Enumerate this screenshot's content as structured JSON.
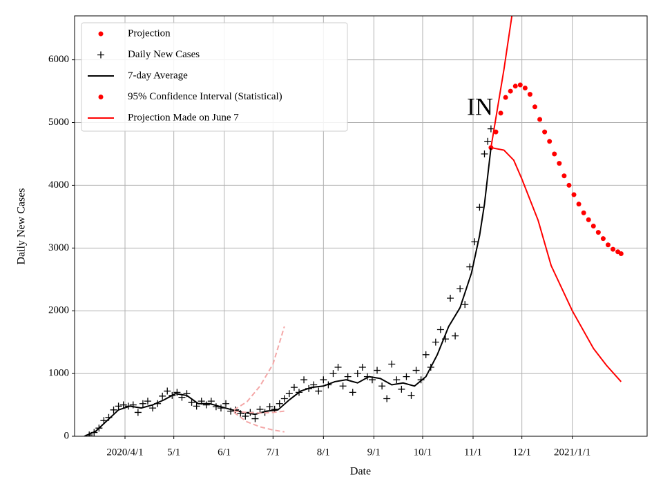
{
  "chart_data": {
    "type": "line",
    "annotation": "IN",
    "xlabel": "Date",
    "ylabel": "Daily New Cases",
    "xlim": [
      "2020-03-01",
      "2021-02-16"
    ],
    "xticks": [
      {
        "value": "2020-04-01",
        "label": "2020/4/1"
      },
      {
        "value": "2020-05-01",
        "label": "5/1"
      },
      {
        "value": "2020-06-01",
        "label": "6/1"
      },
      {
        "value": "2020-07-01",
        "label": "7/1"
      },
      {
        "value": "2020-08-01",
        "label": "8/1"
      },
      {
        "value": "2020-09-01",
        "label": "9/1"
      },
      {
        "value": "2020-10-01",
        "label": "10/1"
      },
      {
        "value": "2020-11-01",
        "label": "11/1"
      },
      {
        "value": "2020-12-01",
        "label": "12/1"
      },
      {
        "value": "2021-01-01",
        "label": "2021/1/1"
      }
    ],
    "ylim": [
      0,
      6700
    ],
    "yticks": [
      0,
      1000,
      2000,
      3000,
      4000,
      5000,
      6000
    ],
    "grid": true,
    "legend": "upper left",
    "series": [
      {
        "name": "Projection",
        "color": "red",
        "style": "dot",
        "legend_marker": "dot",
        "x": [
          "2020-11-12",
          "2020-11-15",
          "2020-11-18",
          "2020-11-21",
          "2020-11-24",
          "2020-11-27",
          "2020-11-30",
          "2020-12-03",
          "2020-12-06",
          "2020-12-09",
          "2020-12-12",
          "2020-12-15",
          "2020-12-18",
          "2020-12-21",
          "2020-12-24",
          "2020-12-27",
          "2020-12-30",
          "2021-01-02",
          "2021-01-05",
          "2021-01-08",
          "2021-01-11",
          "2021-01-14",
          "2021-01-17",
          "2021-01-20",
          "2021-01-23",
          "2021-01-26",
          "2021-01-29",
          "2021-01-31"
        ],
        "values": [
          4600,
          4850,
          5150,
          5400,
          5500,
          5580,
          5600,
          5550,
          5450,
          5250,
          5050,
          4850,
          4700,
          4500,
          4350,
          4150,
          4000,
          3850,
          3700,
          3560,
          3450,
          3350,
          3250,
          3150,
          3050,
          2980,
          2940,
          2910
        ]
      },
      {
        "name": "Daily New Cases",
        "color": "black",
        "style": "plus",
        "legend_marker": "plus",
        "x": [
          "2020-03-10",
          "2020-03-13",
          "2020-03-16",
          "2020-03-19",
          "2020-03-22",
          "2020-03-25",
          "2020-03-28",
          "2020-03-31",
          "2020-04-03",
          "2020-04-06",
          "2020-04-09",
          "2020-04-12",
          "2020-04-15",
          "2020-04-18",
          "2020-04-21",
          "2020-04-24",
          "2020-04-27",
          "2020-04-30",
          "2020-05-03",
          "2020-05-06",
          "2020-05-09",
          "2020-05-12",
          "2020-05-15",
          "2020-05-18",
          "2020-05-21",
          "2020-05-24",
          "2020-05-27",
          "2020-05-30",
          "2020-06-02",
          "2020-06-05",
          "2020-06-08",
          "2020-06-11",
          "2020-06-14",
          "2020-06-17",
          "2020-06-20",
          "2020-06-23",
          "2020-06-26",
          "2020-06-29",
          "2020-07-02",
          "2020-07-05",
          "2020-07-08",
          "2020-07-11",
          "2020-07-14",
          "2020-07-17",
          "2020-07-20",
          "2020-07-23",
          "2020-07-26",
          "2020-07-29",
          "2020-08-01",
          "2020-08-04",
          "2020-08-07",
          "2020-08-10",
          "2020-08-13",
          "2020-08-16",
          "2020-08-19",
          "2020-08-22",
          "2020-08-25",
          "2020-08-28",
          "2020-08-31",
          "2020-09-03",
          "2020-09-06",
          "2020-09-09",
          "2020-09-12",
          "2020-09-15",
          "2020-09-18",
          "2020-09-21",
          "2020-09-24",
          "2020-09-27",
          "2020-09-30",
          "2020-10-03",
          "2020-10-06",
          "2020-10-09",
          "2020-10-12",
          "2020-10-15",
          "2020-10-18",
          "2020-10-21",
          "2020-10-24",
          "2020-10-27",
          "2020-10-30",
          "2020-11-02",
          "2020-11-05",
          "2020-11-08",
          "2020-11-10",
          "2020-11-12"
        ],
        "values": [
          20,
          60,
          130,
          250,
          300,
          420,
          480,
          500,
          480,
          500,
          380,
          520,
          560,
          450,
          520,
          640,
          720,
          650,
          700,
          620,
          680,
          540,
          480,
          560,
          500,
          560,
          470,
          450,
          520,
          400,
          420,
          360,
          320,
          380,
          280,
          430,
          380,
          470,
          430,
          520,
          600,
          680,
          780,
          700,
          900,
          760,
          820,
          720,
          900,
          820,
          1000,
          1100,
          800,
          950,
          700,
          1000,
          1100,
          950,
          900,
          1050,
          800,
          600,
          1150,
          900,
          750,
          950,
          650,
          1050,
          900,
          1300,
          1100,
          1500,
          1700,
          1550,
          2200,
          1600,
          2350,
          2100,
          2700,
          3100,
          3650,
          4500,
          4700,
          4900
        ]
      },
      {
        "name": "7-day Average",
        "color": "black",
        "style": "line",
        "legend_marker": "line",
        "x": [
          "2020-03-07",
          "2020-03-14",
          "2020-03-21",
          "2020-03-28",
          "2020-04-04",
          "2020-04-11",
          "2020-04-18",
          "2020-04-25",
          "2020-05-02",
          "2020-05-09",
          "2020-05-16",
          "2020-05-23",
          "2020-05-30",
          "2020-06-06",
          "2020-06-13",
          "2020-06-20",
          "2020-06-27",
          "2020-07-04",
          "2020-07-11",
          "2020-07-18",
          "2020-07-25",
          "2020-08-01",
          "2020-08-08",
          "2020-08-15",
          "2020-08-22",
          "2020-08-29",
          "2020-09-05",
          "2020-09-12",
          "2020-09-19",
          "2020-09-26",
          "2020-10-03",
          "2020-10-10",
          "2020-10-17",
          "2020-10-24",
          "2020-10-31",
          "2020-11-05",
          "2020-11-08",
          "2020-11-12"
        ],
        "values": [
          0,
          80,
          250,
          420,
          480,
          450,
          500,
          580,
          680,
          650,
          520,
          520,
          470,
          420,
          380,
          350,
          400,
          420,
          580,
          720,
          780,
          800,
          870,
          900,
          850,
          950,
          920,
          820,
          850,
          800,
          950,
          1300,
          1750,
          2050,
          2600,
          3200,
          3700,
          4600
        ]
      },
      {
        "name": "95% Confidence Interval (Statistical)",
        "color": "red",
        "style": "line",
        "legend_marker": "dot",
        "x": [
          "2020-11-12",
          "2020-11-20",
          "2020-11-26",
          "2020-12-01",
          "2020-12-11",
          "2020-12-19",
          "2021-01-01",
          "2021-01-14",
          "2021-01-22",
          "2021-01-31"
        ],
        "upper": [
          4600,
          5850,
          6900,
          null,
          null,
          null,
          null,
          null,
          null,
          null
        ],
        "lower": [
          4600,
          4560,
          4400,
          4100,
          3440,
          2720,
          2000,
          1400,
          1130,
          870
        ]
      },
      {
        "name": "Projection Made on June 7",
        "color": "#f4a6a6",
        "legend_color": "red",
        "style": "dashed",
        "legend_marker": "line",
        "x": [
          "2020-06-07",
          "2020-06-15",
          "2020-06-23",
          "2020-07-01",
          "2020-07-08"
        ],
        "values": [
          400,
          380,
          370,
          380,
          400
        ],
        "upper": [
          420,
          550,
          800,
          1150,
          1750
        ],
        "lower": [
          380,
          230,
          150,
          100,
          70
        ]
      }
    ]
  }
}
